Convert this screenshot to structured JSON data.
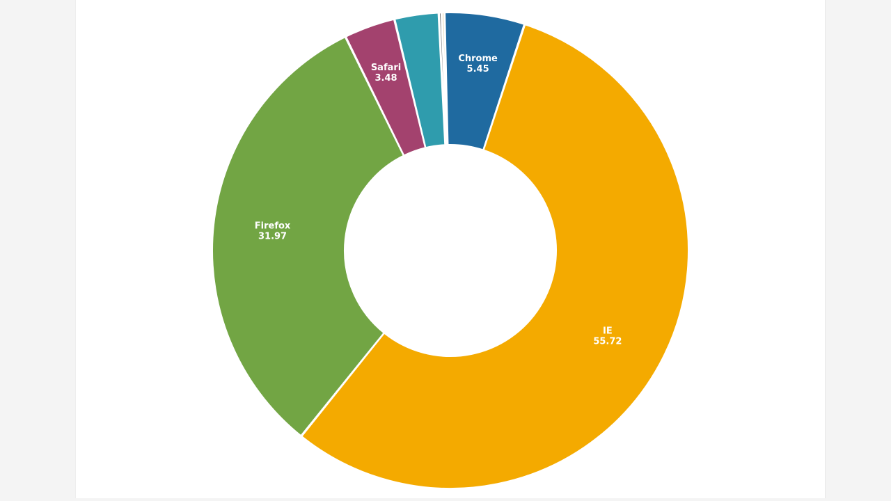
{
  "chart_data": {
    "type": "pie",
    "donut": true,
    "slices": [
      {
        "label": "Chrome",
        "value": 5.45,
        "color": "#1f6aa0",
        "shown_label": true
      },
      {
        "label": "IE",
        "value": 55.72,
        "color": "#f4aa00",
        "shown_label": true
      },
      {
        "label": "Firefox",
        "value": 31.97,
        "color": "#72a544",
        "shown_label": true
      },
      {
        "label": "Safari",
        "value": 3.48,
        "color": "#a3426e",
        "shown_label": true
      },
      {
        "label": "",
        "value": 3.0,
        "color": "#2f9cad",
        "shown_label": false
      },
      {
        "label": "",
        "value": 0.2,
        "color": "#6b6b6b",
        "shown_label": false
      },
      {
        "label": "",
        "value": 0.18,
        "color": "#c8a24a",
        "shown_label": false
      }
    ],
    "legend": "none",
    "title": ""
  }
}
